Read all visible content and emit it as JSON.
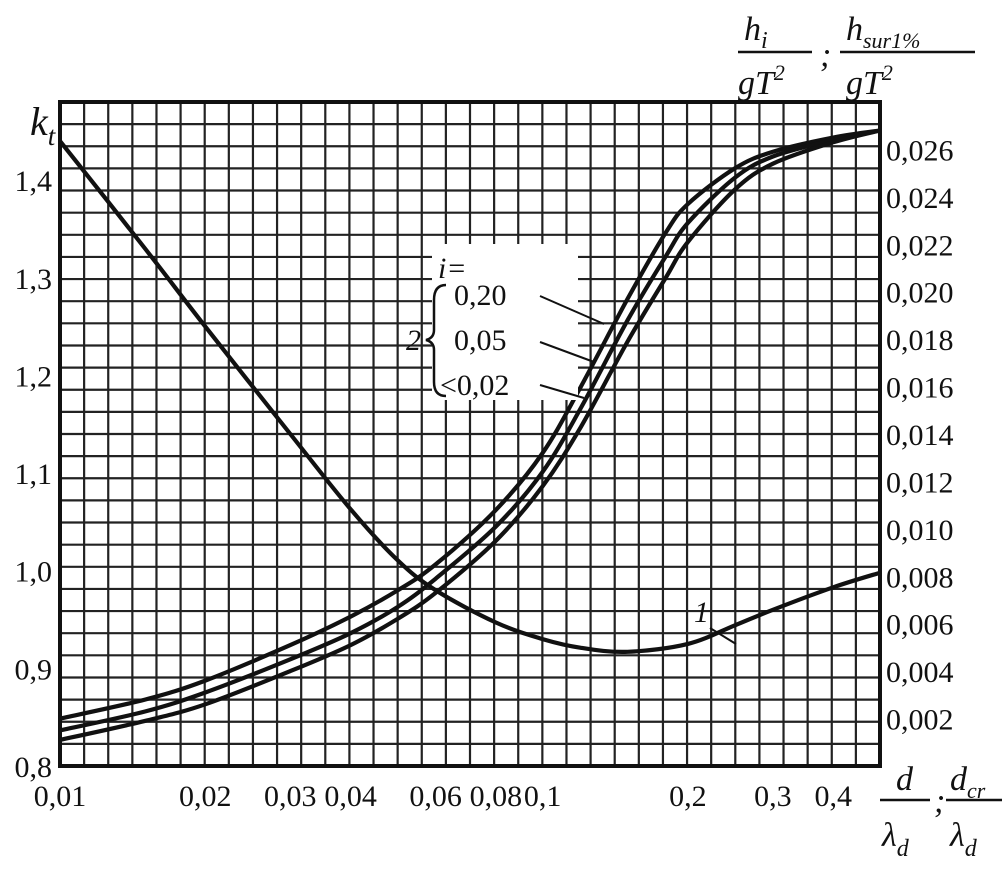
{
  "chart_data": {
    "type": "line",
    "x_axis": {
      "scale": "log",
      "range": [
        0.01,
        0.5
      ],
      "tick_values": [
        0.01,
        0.02,
        0.03,
        0.04,
        0.06,
        0.08,
        0.1,
        0.2,
        0.3,
        0.4
      ],
      "tick_labels": [
        "0,01",
        "0,02",
        "0,03",
        "0,04",
        "0,06",
        "0,08",
        "0,1",
        "0,2",
        "0,3",
        "0,4"
      ],
      "label_main": "d",
      "label_main_den": "λ",
      "label_main_den_sub": "d",
      "label_sep": ";",
      "label_second": "d",
      "label_second_sub": "cr",
      "label_second_den": "λ",
      "label_second_den_sub": "d"
    },
    "y_left": {
      "range": [
        0.8,
        1.48
      ],
      "ticks": [
        0.8,
        0.9,
        1.0,
        1.1,
        1.2,
        1.3,
        1.4
      ],
      "tick_labels": [
        "0,8",
        "0,9",
        "1,0",
        "1,1",
        "1,2",
        "1,3",
        "1,4"
      ],
      "label": "k",
      "label_sub": "t"
    },
    "y_right": {
      "range": [
        0.0,
        0.028
      ],
      "ticks": [
        0.002,
        0.004,
        0.006,
        0.008,
        0.01,
        0.012,
        0.014,
        0.016,
        0.018,
        0.02,
        0.022,
        0.024,
        0.026
      ],
      "tick_labels": [
        "0,002",
        "0,004",
        "0,006",
        "0,008",
        "0,010",
        "0,012",
        "0,014",
        "0,016",
        "0,018",
        "0,020",
        "0,022",
        "0,024",
        "0,026"
      ],
      "label_num1": "h",
      "label_num1_sub": "i",
      "label_den1": "gT",
      "label_den1_sup": "2",
      "label_sep": ";",
      "label_num2": "h",
      "label_num2_sub": "sur1%",
      "label_den2": "gT",
      "label_den2_sup": "2"
    },
    "grid": true,
    "series": [
      {
        "name": "1",
        "axis": "left",
        "x": [
          0.01,
          0.015,
          0.02,
          0.03,
          0.04,
          0.05,
          0.06,
          0.08,
          0.1,
          0.12,
          0.15,
          0.2,
          0.25,
          0.3,
          0.4,
          0.5
        ],
        "y": [
          1.44,
          1.33,
          1.25,
          1.14,
          1.063,
          1.011,
          0.98,
          0.947,
          0.93,
          0.921,
          0.917,
          0.925,
          0.944,
          0.96,
          0.983,
          0.998
        ]
      },
      {
        "name": "0,20",
        "axis": "right",
        "x": [
          0.01,
          0.015,
          0.02,
          0.03,
          0.04,
          0.05,
          0.06,
          0.08,
          0.1,
          0.12,
          0.15,
          0.18,
          0.2,
          0.25,
          0.3,
          0.4,
          0.5
        ],
        "y": [
          0.002,
          0.0028,
          0.0036,
          0.0051,
          0.0063,
          0.0074,
          0.0085,
          0.0108,
          0.0132,
          0.016,
          0.0197,
          0.0225,
          0.0237,
          0.0252,
          0.0259,
          0.0265,
          0.0268
        ]
      },
      {
        "name": "0,05",
        "axis": "right",
        "x": [
          0.01,
          0.015,
          0.02,
          0.03,
          0.04,
          0.05,
          0.06,
          0.08,
          0.1,
          0.12,
          0.15,
          0.18,
          0.2,
          0.25,
          0.3,
          0.4,
          0.5
        ],
        "y": [
          0.0015,
          0.0023,
          0.0031,
          0.0045,
          0.0056,
          0.0067,
          0.0079,
          0.0101,
          0.0124,
          0.0151,
          0.0188,
          0.0215,
          0.0229,
          0.0248,
          0.0257,
          0.0264,
          0.0268
        ]
      },
      {
        "name": "<0,02",
        "axis": "right",
        "x": [
          0.01,
          0.015,
          0.02,
          0.03,
          0.04,
          0.05,
          0.06,
          0.08,
          0.1,
          0.12,
          0.15,
          0.18,
          0.2,
          0.25,
          0.3,
          0.4,
          0.5
        ],
        "y": [
          0.0011,
          0.0019,
          0.0026,
          0.004,
          0.0051,
          0.0062,
          0.0073,
          0.0095,
          0.0118,
          0.0143,
          0.0179,
          0.0206,
          0.0221,
          0.0243,
          0.0254,
          0.0263,
          0.0268
        ]
      }
    ],
    "annotations": {
      "curve_1_label": "1",
      "group_number": "2",
      "group_header": "i=",
      "group_items": [
        "0,20",
        "0,05",
        "<0,02"
      ]
    }
  }
}
